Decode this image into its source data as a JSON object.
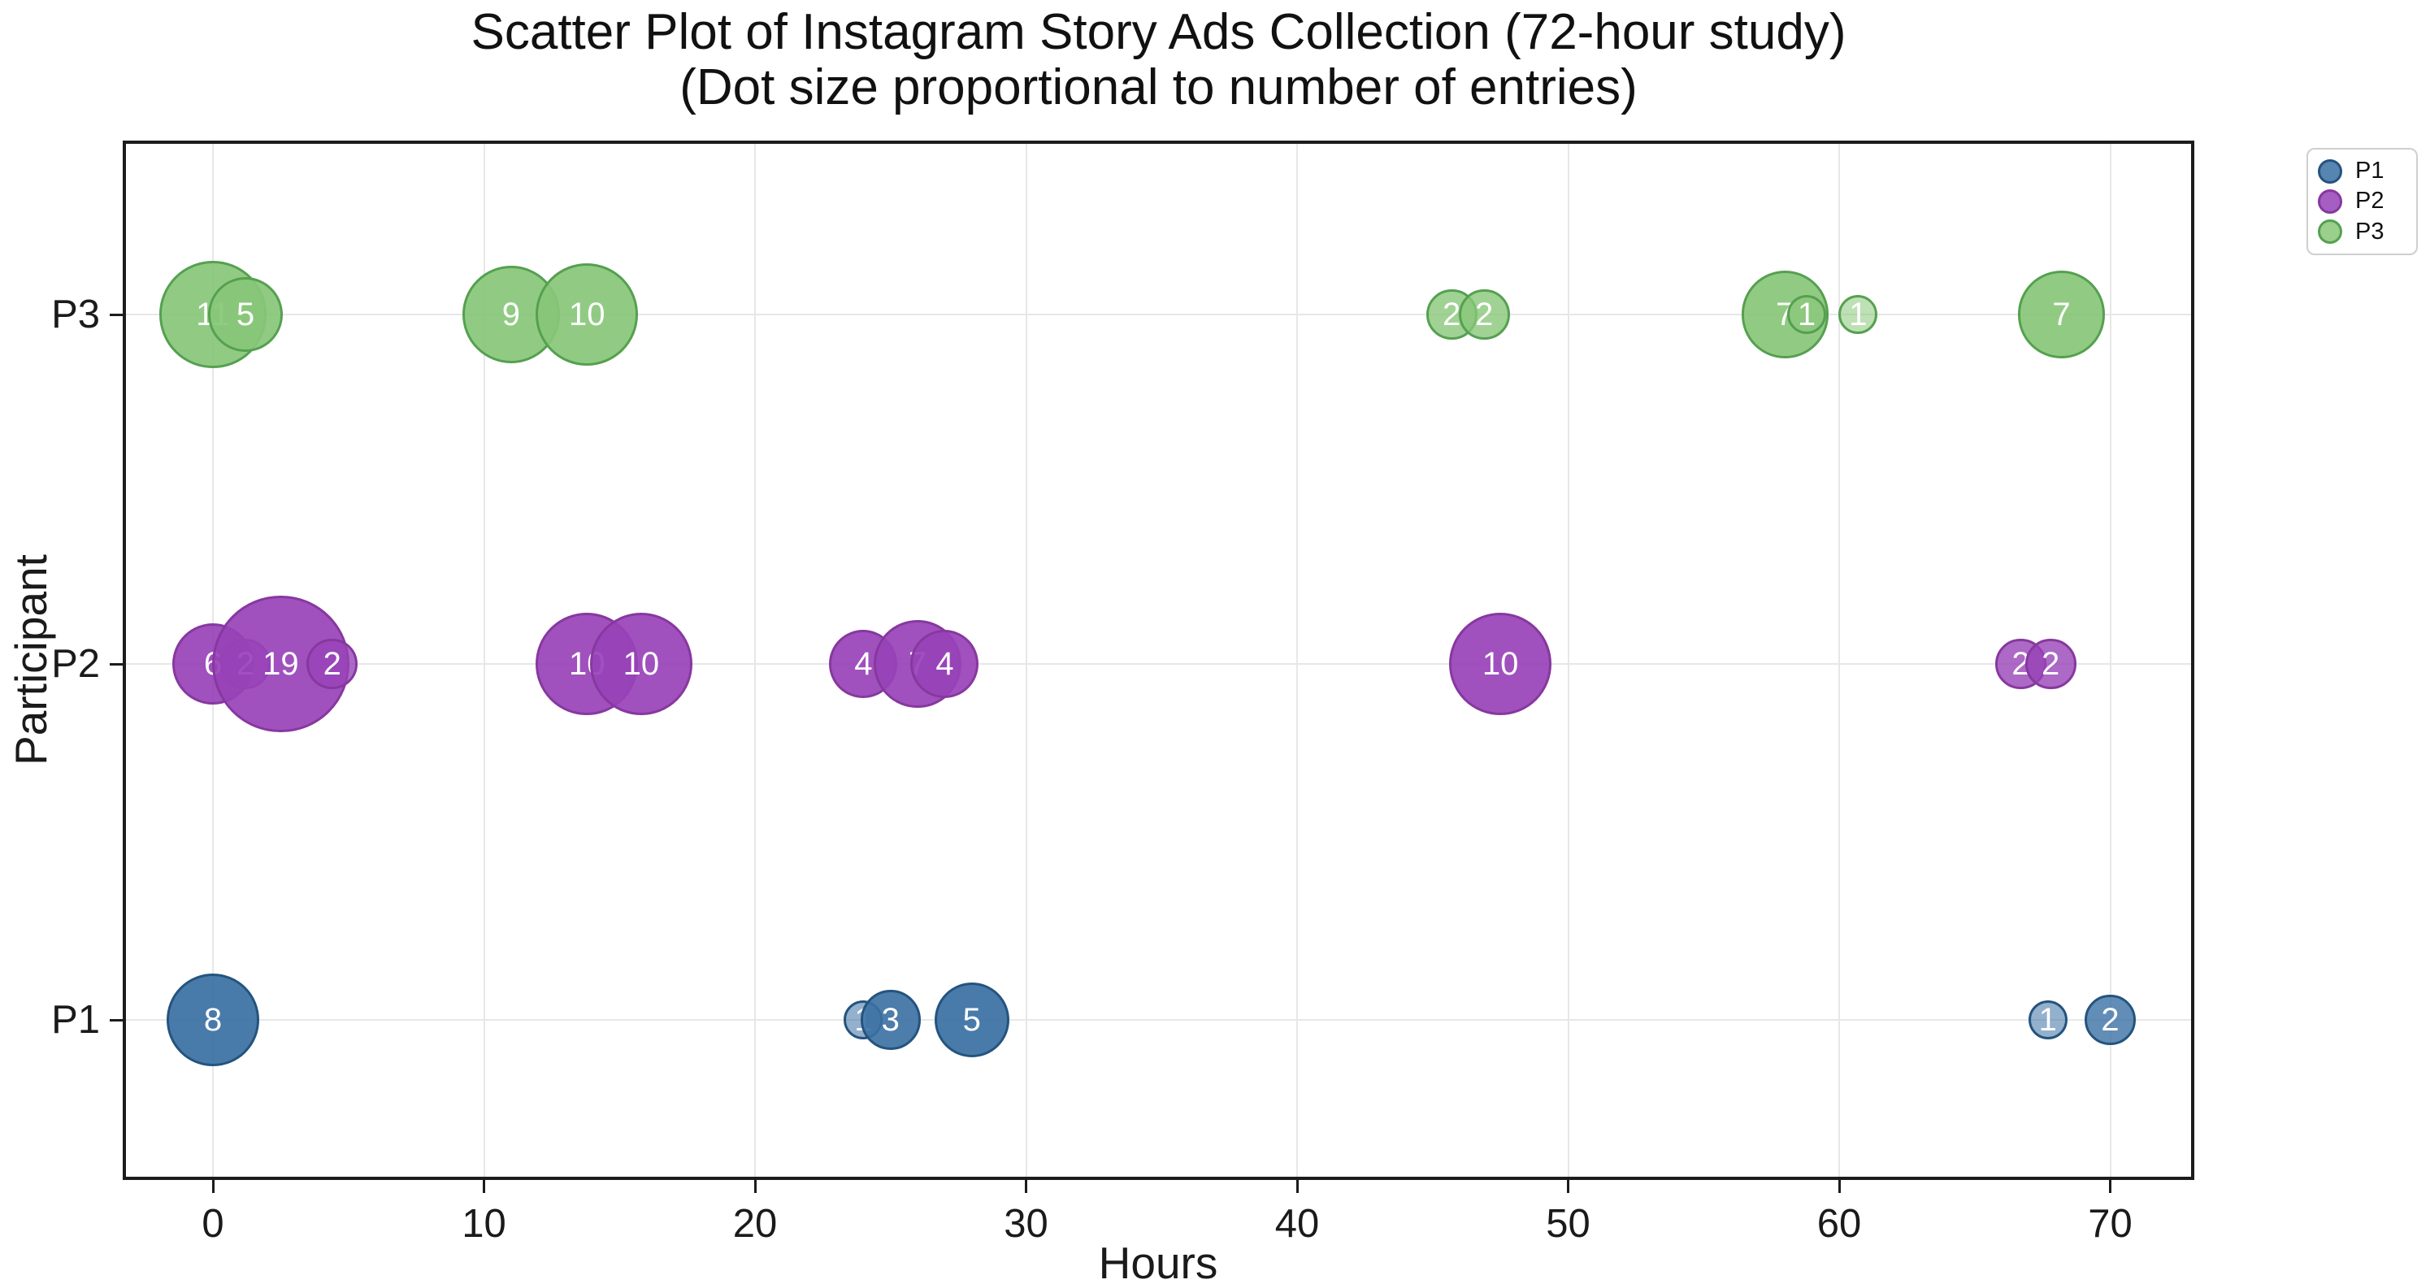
{
  "title": {
    "line1": "Scatter Plot of Instagram Story Ads Collection (72-hour study)",
    "line2": "(Dot size proportional to number of entries)"
  },
  "axes": {
    "x_label": "Hours",
    "y_label": "Participant"
  },
  "legend": {
    "entries": [
      "P1",
      "P2",
      "P3"
    ]
  },
  "chart_data": {
    "type": "scatter",
    "title": "Scatter Plot of Instagram Story Ads Collection (72-hour study)",
    "subtitle": "(Dot size proportional to number of entries)",
    "xlabel": "Hours",
    "ylabel": "Participant",
    "xlim": [
      -3.3,
      73.2
    ],
    "x_ticks": [
      0,
      10,
      20,
      30,
      40,
      50,
      60,
      70
    ],
    "categories": [
      "P1",
      "P2",
      "P3"
    ],
    "grid": true,
    "legend_position": "upper right outside",
    "size_rule": "dot size proportional to number of entries; white label inside dot = entries",
    "series": [
      {
        "name": "P1",
        "fill": "#3A70A3",
        "edge": "#24547E",
        "points": [
          {
            "hours": 0,
            "entries": 8
          },
          {
            "hours": 24,
            "entries": 1
          },
          {
            "hours": 25,
            "entries": 3
          },
          {
            "hours": 28,
            "entries": 5
          },
          {
            "hours": 67.7,
            "entries": 1
          },
          {
            "hours": 70,
            "entries": 2
          }
        ]
      },
      {
        "name": "P2",
        "fill": "#9842B8",
        "edge": "#87389F",
        "points": [
          {
            "hours": 0,
            "entries": 6
          },
          {
            "hours": 1.2,
            "entries": 2
          },
          {
            "hours": 2.5,
            "entries": 19
          },
          {
            "hours": 4.4,
            "entries": 2
          },
          {
            "hours": 13.8,
            "entries": 10
          },
          {
            "hours": 15.8,
            "entries": 10
          },
          {
            "hours": 24,
            "entries": 4
          },
          {
            "hours": 26,
            "entries": 7
          },
          {
            "hours": 27,
            "entries": 4
          },
          {
            "hours": 47.5,
            "entries": 10
          },
          {
            "hours": 66.7,
            "entries": 2
          },
          {
            "hours": 67.8,
            "entries": 2
          }
        ]
      },
      {
        "name": "P3",
        "fill": "#88C778",
        "edge": "#55A050",
        "points": [
          {
            "hours": 0,
            "entries": 11
          },
          {
            "hours": 1.2,
            "entries": 5
          },
          {
            "hours": 11,
            "entries": 9
          },
          {
            "hours": 13.8,
            "entries": 10
          },
          {
            "hours": 45.7,
            "entries": 2
          },
          {
            "hours": 46.9,
            "entries": 2
          },
          {
            "hours": 58,
            "entries": 7
          },
          {
            "hours": 58.8,
            "entries": 1
          },
          {
            "hours": 60.7,
            "entries": 1
          },
          {
            "hours": 68.2,
            "entries": 7
          }
        ]
      }
    ]
  }
}
